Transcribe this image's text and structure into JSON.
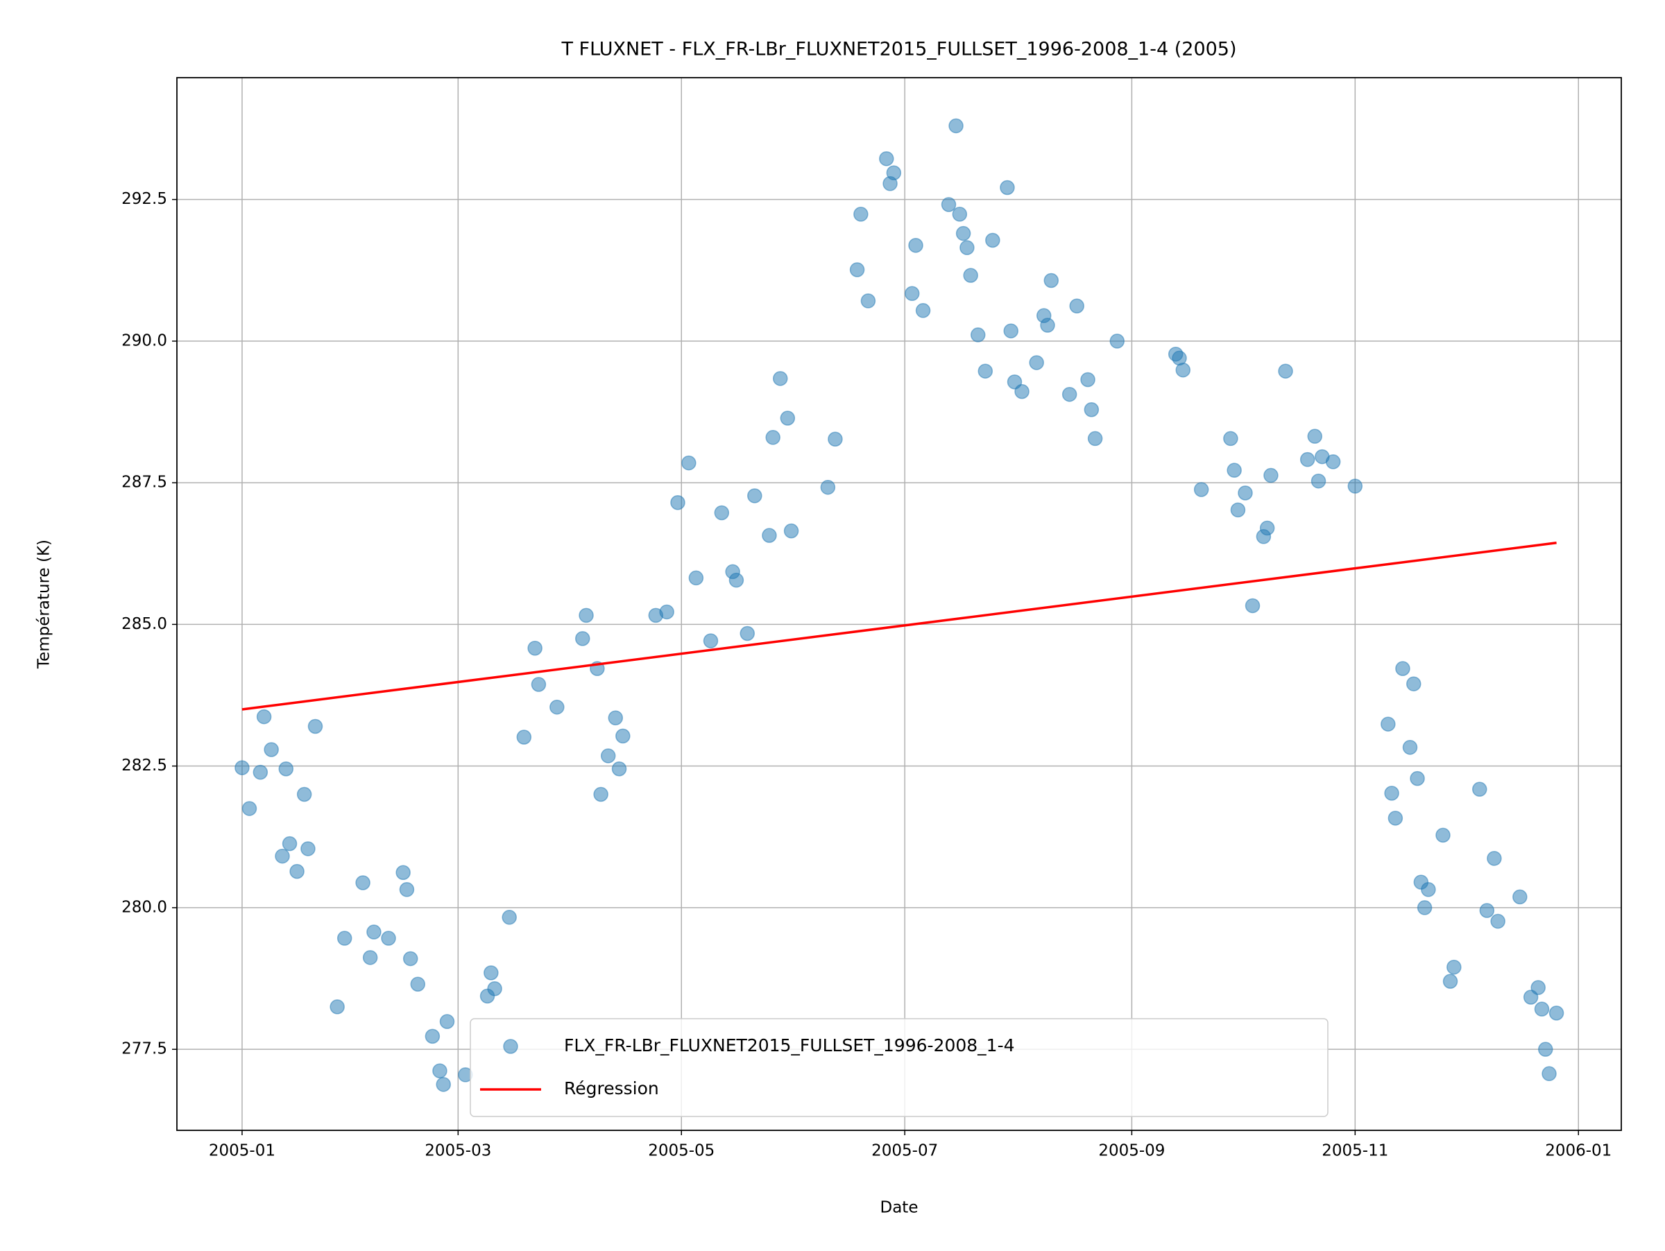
{
  "chart_data": {
    "type": "scatter",
    "title": "T FLUXNET - FLX_FR-LBr_FLUXNET2015_FULLSET_1996-2008_1-4 (2005)",
    "xlabel": "Date",
    "ylabel": "Température (K)",
    "xlim": [
      -17.8,
      376.7
    ],
    "xticks": [
      {
        "value": 0,
        "label": "2005-01"
      },
      {
        "value": 59,
        "label": "2005-03"
      },
      {
        "value": 120,
        "label": "2005-05"
      },
      {
        "value": 181,
        "label": "2005-07"
      },
      {
        "value": 243,
        "label": "2005-09"
      },
      {
        "value": 304,
        "label": "2005-11"
      },
      {
        "value": 365,
        "label": "2006-01"
      }
    ],
    "ylim": [
      276.07,
      294.65
    ],
    "yticks": [
      277.5,
      {
        "value": 280,
        "label": "280.0"
      },
      282.5,
      {
        "value": 285,
        "label": "285.0"
      },
      287.5,
      {
        "value": 290,
        "label": "290.0"
      },
      292.5
    ],
    "grid": true,
    "legend": "lower center",
    "series": [
      {
        "name": "FLX_FR-LBr_FLUXNET2015_FULLSET_1996-2008_1-4",
        "type": "scatter",
        "color": "#1f77b4",
        "x": [
          0,
          2,
          5,
          6,
          8,
          12,
          11,
          13,
          15,
          17,
          18,
          20,
          26,
          28,
          33,
          35,
          36,
          40,
          44,
          45,
          46,
          48,
          52,
          54,
          55,
          56,
          61,
          67,
          68,
          69,
          73,
          77,
          80,
          81,
          86,
          93,
          94,
          97,
          98,
          100,
          102,
          103,
          104,
          113,
          116,
          119,
          122,
          124,
          128,
          131,
          134,
          135,
          138,
          140,
          144,
          145,
          147,
          149,
          150,
          160,
          162,
          168,
          169,
          171,
          176,
          177,
          178,
          183,
          184,
          186,
          193,
          195,
          196,
          197,
          198,
          199,
          201,
          203,
          205,
          209,
          210,
          211,
          213,
          217,
          219,
          220,
          221,
          226,
          228,
          231,
          232,
          233,
          239,
          255,
          256,
          257,
          262,
          270,
          271,
          272,
          274,
          276,
          279,
          280,
          281,
          285,
          291,
          293,
          294,
          295,
          298,
          304,
          313,
          314,
          315,
          317,
          319,
          320,
          321,
          322,
          323,
          324,
          328,
          330,
          331,
          338,
          340,
          342,
          343,
          349,
          352,
          354,
          355,
          356,
          357,
          359
        ],
        "values": [
          282.47,
          281.75,
          282.39,
          283.37,
          282.79,
          282.45,
          280.91,
          281.13,
          280.64,
          282.0,
          281.04,
          283.2,
          278.25,
          279.46,
          280.44,
          279.12,
          279.57,
          279.46,
          280.62,
          280.32,
          279.1,
          278.65,
          277.73,
          277.12,
          276.88,
          277.99,
          277.05,
          278.44,
          278.85,
          278.57,
          279.83,
          283.01,
          284.58,
          283.94,
          283.54,
          284.75,
          285.16,
          284.22,
          282.0,
          282.68,
          283.35,
          282.45,
          283.03,
          285.16,
          285.22,
          287.15,
          287.85,
          285.82,
          284.71,
          286.97,
          285.93,
          285.78,
          284.84,
          287.27,
          286.57,
          288.3,
          289.34,
          288.64,
          286.65,
          287.42,
          288.27,
          291.26,
          292.24,
          290.71,
          293.22,
          292.78,
          292.97,
          290.84,
          291.69,
          290.54,
          292.41,
          293.8,
          292.24,
          291.9,
          291.65,
          291.16,
          290.11,
          289.47,
          291.78,
          292.71,
          290.18,
          289.28,
          289.11,
          289.62,
          290.45,
          290.28,
          291.07,
          289.06,
          290.62,
          289.32,
          288.79,
          288.28,
          290.0,
          289.77,
          289.7,
          289.49,
          287.38,
          288.28,
          287.72,
          287.02,
          287.32,
          285.33,
          286.55,
          286.7,
          287.63,
          289.47,
          287.91,
          288.32,
          287.53,
          287.96,
          287.87,
          287.44,
          283.24,
          282.02,
          281.58,
          284.22,
          282.83,
          283.95,
          282.28,
          280.45,
          280.0,
          280.32,
          281.28,
          278.7,
          278.95,
          282.09,
          279.95,
          280.87,
          279.76,
          280.19,
          278.42,
          278.59,
          278.21,
          277.5,
          277.07,
          278.14
        ]
      },
      {
        "name": "Régression",
        "type": "line",
        "color": "#ff0000",
        "x": [
          0,
          359
        ],
        "values": [
          283.5,
          286.44
        ]
      }
    ]
  }
}
